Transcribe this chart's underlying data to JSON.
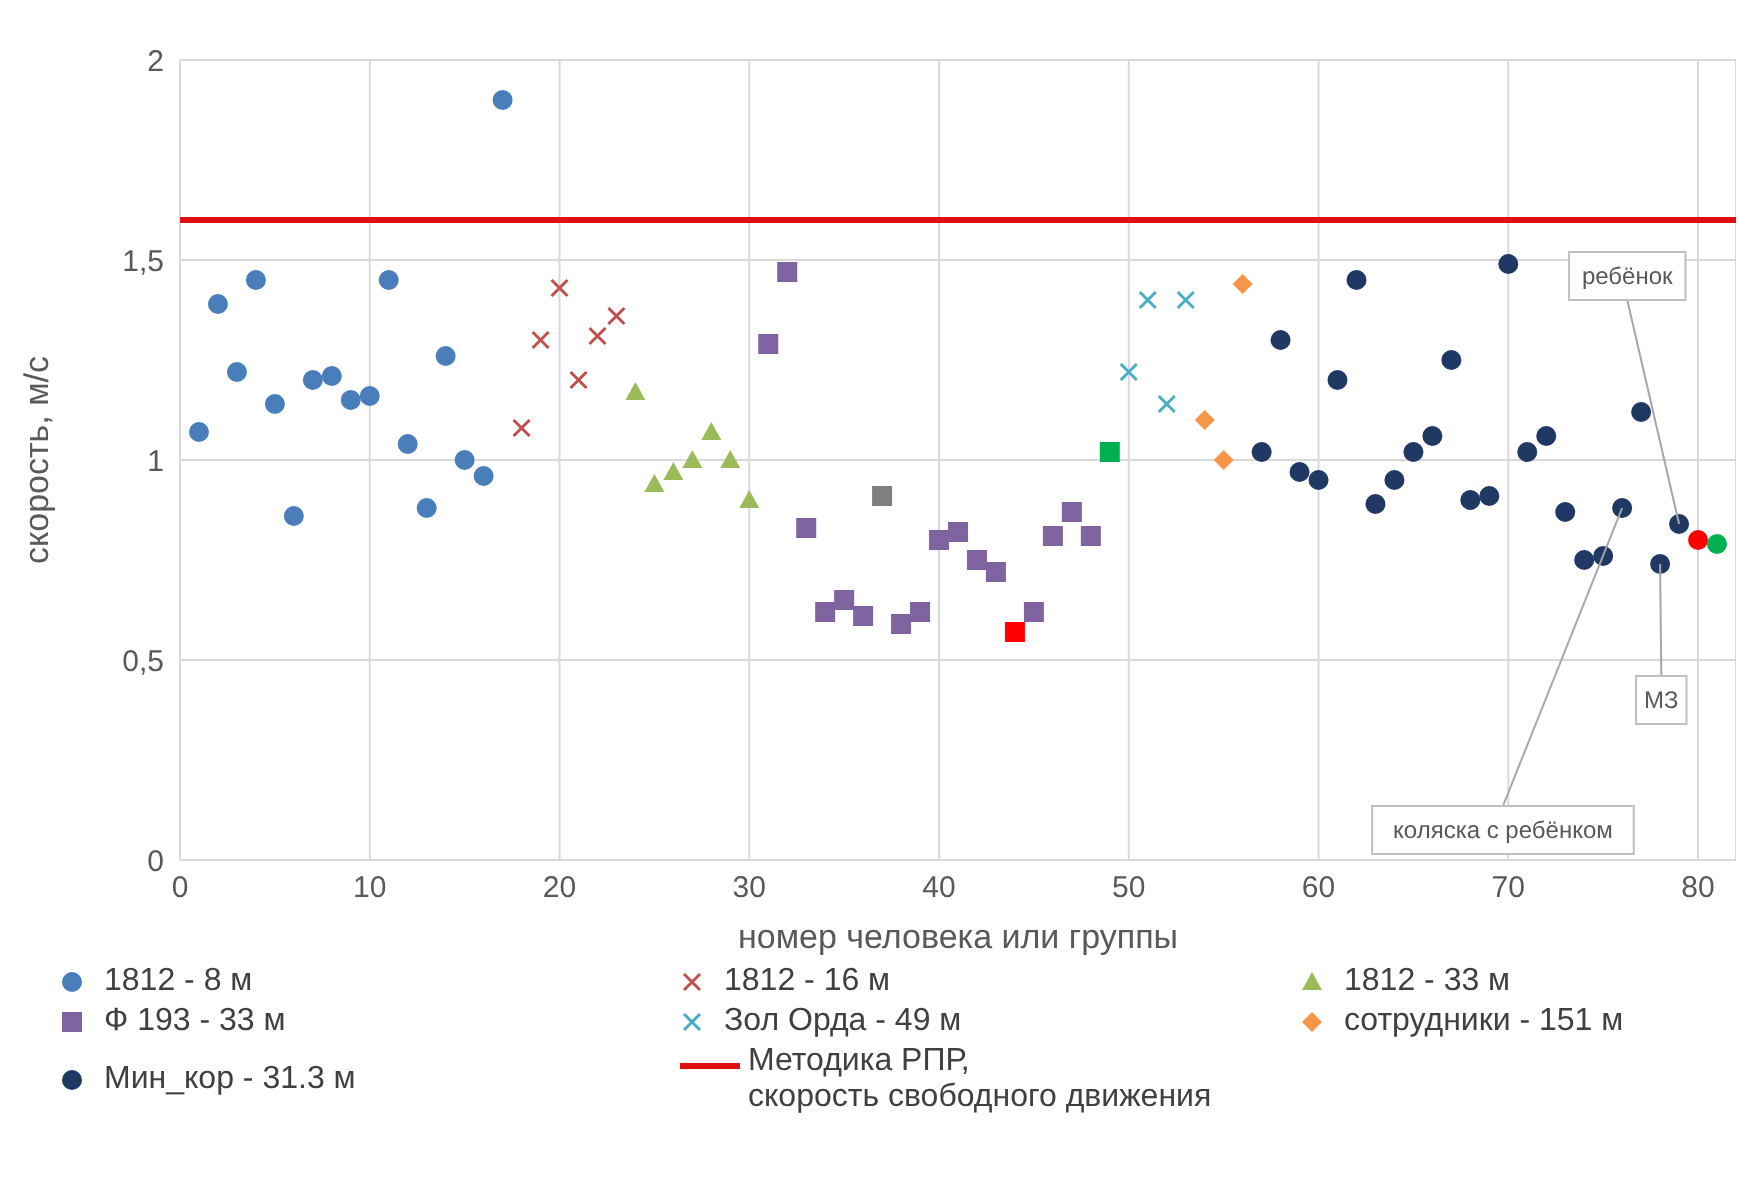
{
  "chart_data": {
    "type": "scatter",
    "xlabel": "номер человека или группы",
    "ylabel": "скорость, м/с",
    "xlim": [
      0,
      82
    ],
    "xticks": [
      0,
      10,
      20,
      30,
      40,
      50,
      60,
      70,
      80
    ],
    "ylim": [
      0,
      2
    ],
    "yticks": [
      0,
      {
        "value": 0.5,
        "label": "0,5"
      },
      1,
      {
        "value": 1.5,
        "label": "1,5"
      },
      2
    ],
    "grid": true,
    "legend": "bottom",
    "series": [
      {
        "name": "1812 - 8 м",
        "color": "#4a7ebb",
        "marker": "circle",
        "x": [
          1,
          2,
          3,
          4,
          5,
          6,
          7,
          8,
          9,
          10,
          11,
          12,
          13,
          14,
          15,
          16,
          17
        ],
        "values": [
          1.07,
          1.39,
          1.22,
          1.45,
          1.14,
          0.86,
          1.2,
          1.21,
          1.15,
          1.16,
          1.45,
          1.04,
          0.88,
          1.26,
          1.0,
          0.96,
          1.9
        ]
      },
      {
        "name": "1812  - 16 м",
        "color": "#c0504d",
        "marker": "cross",
        "x": [
          18,
          19,
          20,
          21,
          22,
          23
        ],
        "values": [
          1.08,
          1.3,
          1.43,
          1.2,
          1.31,
          1.36
        ]
      },
      {
        "name": "1812  - 33 м",
        "color": "#9bbb59",
        "marker": "triangle",
        "x": [
          24,
          25,
          26,
          27,
          28,
          29,
          30
        ],
        "values": [
          1.17,
          0.94,
          0.97,
          1.0,
          1.07,
          1.0,
          0.9
        ]
      },
      {
        "name": "Ф 193 - 33 м",
        "color": "#8064a2",
        "marker": "square",
        "x": [
          31,
          32,
          33,
          34,
          35,
          36,
          38,
          39,
          40,
          41,
          42,
          43,
          45,
          46,
          47,
          48
        ],
        "values": [
          1.29,
          1.47,
          0.83,
          0.62,
          0.65,
          0.61,
          0.59,
          0.62,
          0.8,
          0.82,
          0.75,
          0.72,
          0.62,
          0.81,
          0.87,
          0.81
        ]
      },
      {
        "name": "Зол Орда - 49 м",
        "color": "#4bacc6",
        "marker": "cross",
        "x": [
          50,
          51,
          52,
          53
        ],
        "values": [
          1.22,
          1.4,
          1.14,
          1.4
        ]
      },
      {
        "name": "сотрудники - 151 м",
        "color": "#f79646",
        "marker": "diamond",
        "x": [
          54,
          55,
          56
        ],
        "values": [
          1.1,
          1.0,
          1.44
        ]
      },
      {
        "name": "Мин_кор - 31.3 м",
        "color": "#1f3864",
        "marker": "circle",
        "x": [
          57,
          58,
          59,
          60,
          61,
          62,
          63,
          64,
          65,
          66,
          67,
          68,
          69,
          70,
          71,
          72,
          73,
          74,
          75,
          76,
          78,
          79
        ],
        "values": [
          1.02,
          1.3,
          0.97,
          0.95,
          1.2,
          1.45,
          0.89,
          0.95,
          1.02,
          1.06,
          1.25,
          0.9,
          0.91,
          1.49,
          1.02,
          1.06,
          0.87,
          0.75,
          0.76,
          0.88,
          0.74,
          0.84
        ]
      },
      {
        "color": "#7f7f7f",
        "marker": "square",
        "x": [
          37
        ],
        "values": [
          0.91
        ]
      },
      {
        "color": "#ff0000",
        "marker": "square",
        "x": [
          44
        ],
        "values": [
          0.57
        ]
      },
      {
        "color": "#00b050",
        "marker": "square",
        "x": [
          49
        ],
        "values": [
          1.02
        ]
      },
      {
        "color": "#1f3864",
        "marker": "circle",
        "x": [
          77
        ],
        "values": [
          1.12
        ]
      },
      {
        "color": "#ff0000",
        "marker": "circle",
        "x": [
          80
        ],
        "values": [
          0.8
        ]
      },
      {
        "color": "#00b050",
        "marker": "circle",
        "x": [
          81
        ],
        "values": [
          0.79
        ]
      }
    ],
    "ref_lines": [
      {
        "axis": "y",
        "value": 1.6,
        "label": "Методика РПР,\nскорость свободного движения",
        "color": "#e01010"
      }
    ],
    "annotations": [
      {
        "text": "ребёнок",
        "x": 79,
        "y": 0.84
      },
      {
        "text": "МЗ",
        "x": 78,
        "y": 0.74
      },
      {
        "text": "коляска с ребёнком",
        "x": 76,
        "y": 0.88
      }
    ]
  }
}
